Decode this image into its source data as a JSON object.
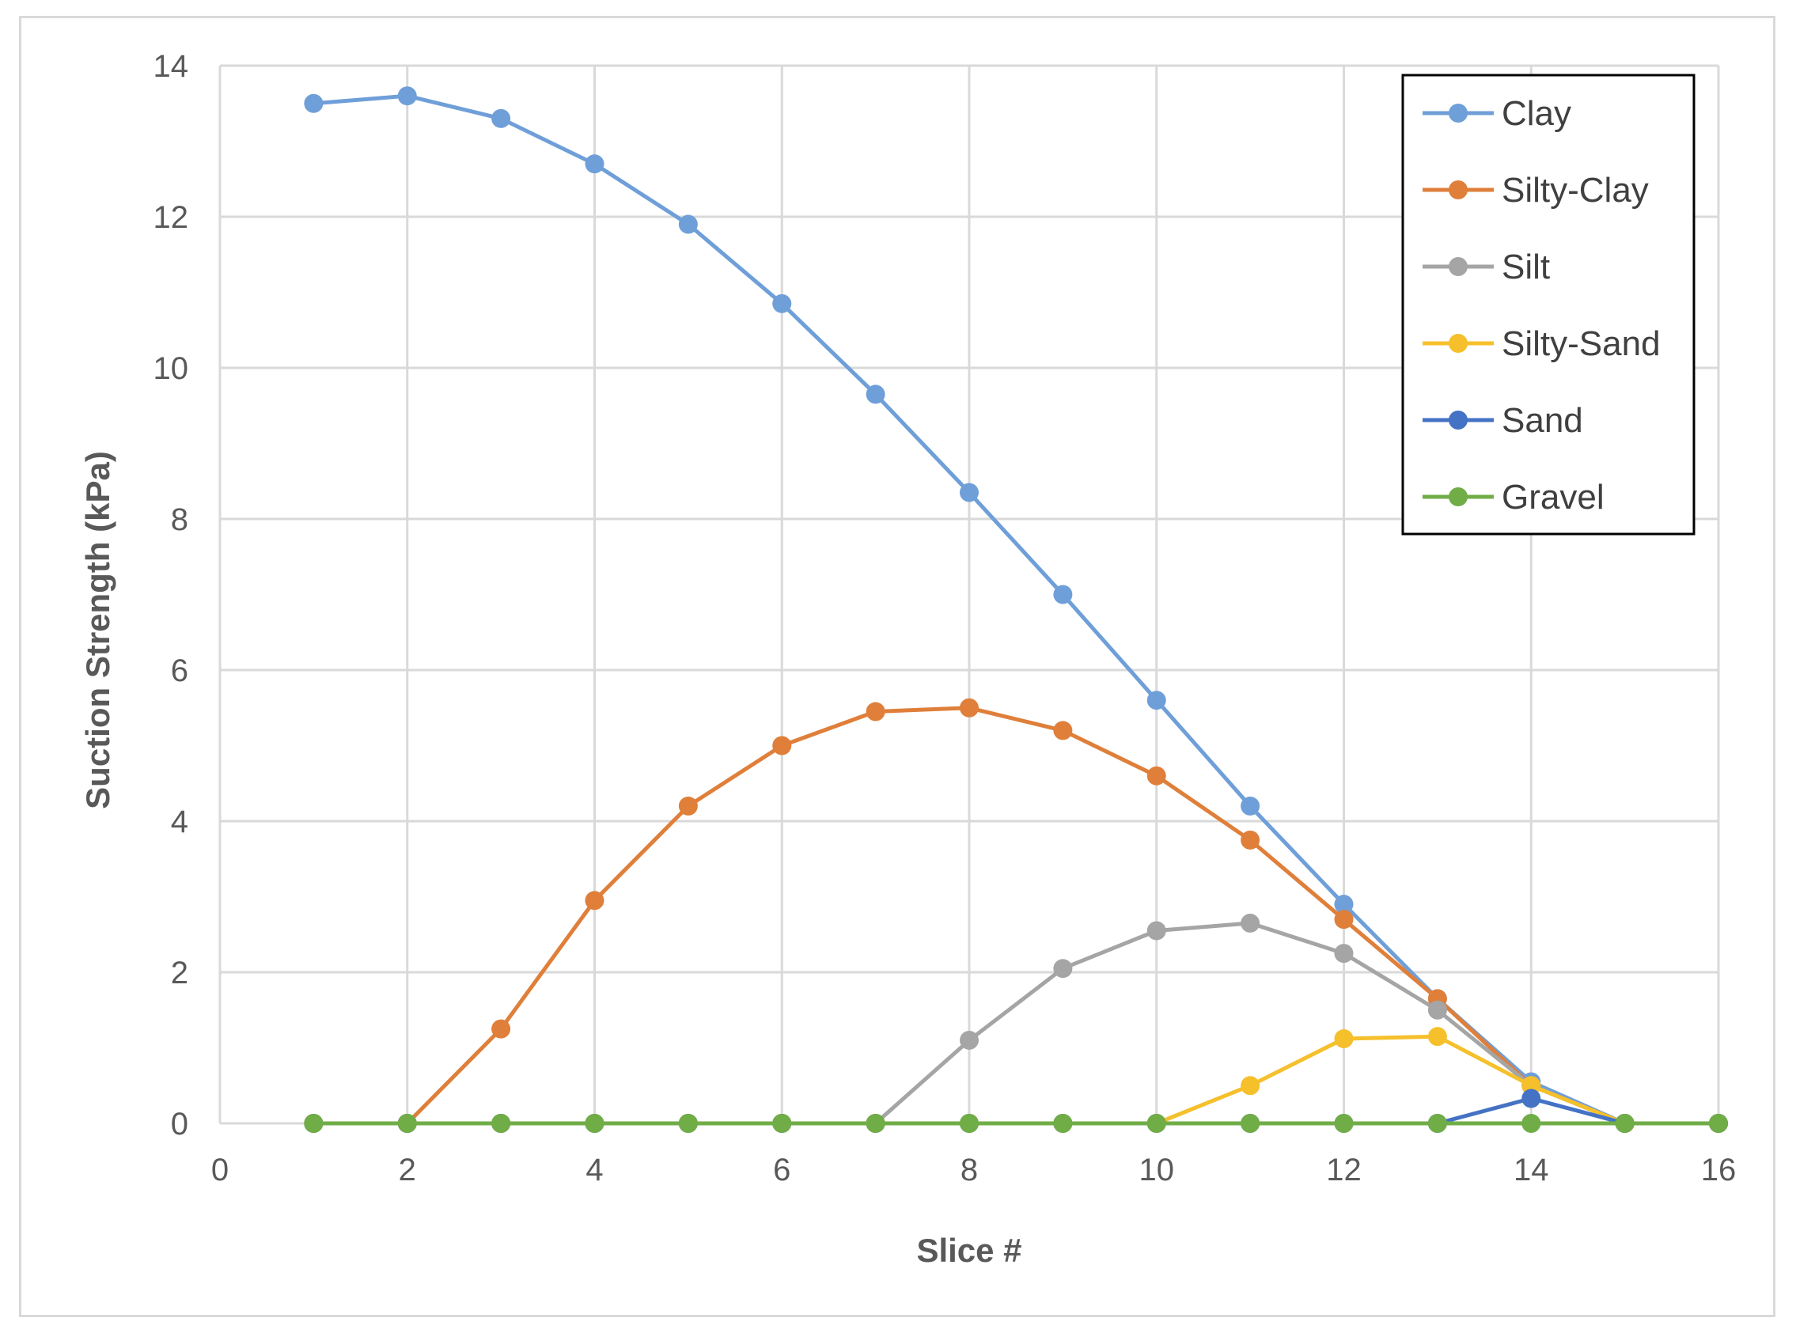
{
  "chart_data": {
    "type": "line",
    "title": "",
    "xlabel": "Slice #",
    "ylabel": "Suction Strength (kPa)",
    "xlim": [
      0,
      16
    ],
    "ylim": [
      0,
      14
    ],
    "xticks": [
      0,
      2,
      4,
      6,
      8,
      10,
      12,
      14,
      16
    ],
    "yticks": [
      0,
      2,
      4,
      6,
      8,
      10,
      12,
      14
    ],
    "grid": true,
    "legend_position": "top-right",
    "x": [
      1,
      2,
      3,
      4,
      5,
      6,
      7,
      8,
      9,
      10,
      11,
      12,
      13,
      14,
      15,
      16
    ],
    "series": [
      {
        "name": "Clay",
        "color": "#6f9fd8",
        "values": [
          13.5,
          13.6,
          13.3,
          12.7,
          11.9,
          10.85,
          9.65,
          8.35,
          7.0,
          5.6,
          4.2,
          2.9,
          1.65,
          0.55,
          0,
          0
        ]
      },
      {
        "name": "Silty-Clay",
        "color": "#df7f3a",
        "values": [
          0,
          0,
          1.25,
          2.95,
          4.2,
          5.0,
          5.45,
          5.5,
          5.2,
          4.6,
          3.75,
          2.7,
          1.65,
          0.5,
          0,
          0
        ]
      },
      {
        "name": "Silt",
        "color": "#a5a5a5",
        "values": [
          0,
          0,
          0,
          0,
          0,
          0,
          0,
          1.1,
          2.05,
          2.55,
          2.65,
          2.25,
          1.5,
          0.5,
          0,
          0
        ]
      },
      {
        "name": "Silty-Sand",
        "color": "#f5c02b",
        "values": [
          0,
          0,
          0,
          0,
          0,
          0,
          0,
          0,
          0,
          0,
          0.5,
          1.12,
          1.15,
          0.5,
          0,
          0
        ]
      },
      {
        "name": "Sand",
        "color": "#4472c4",
        "values": [
          0,
          0,
          0,
          0,
          0,
          0,
          0,
          0,
          0,
          0,
          0,
          0,
          0,
          0.33,
          0,
          0
        ]
      },
      {
        "name": "Gravel",
        "color": "#70ad47",
        "values": [
          0,
          0,
          0,
          0,
          0,
          0,
          0,
          0,
          0,
          0,
          0,
          0,
          0,
          0,
          0,
          0
        ]
      }
    ]
  }
}
